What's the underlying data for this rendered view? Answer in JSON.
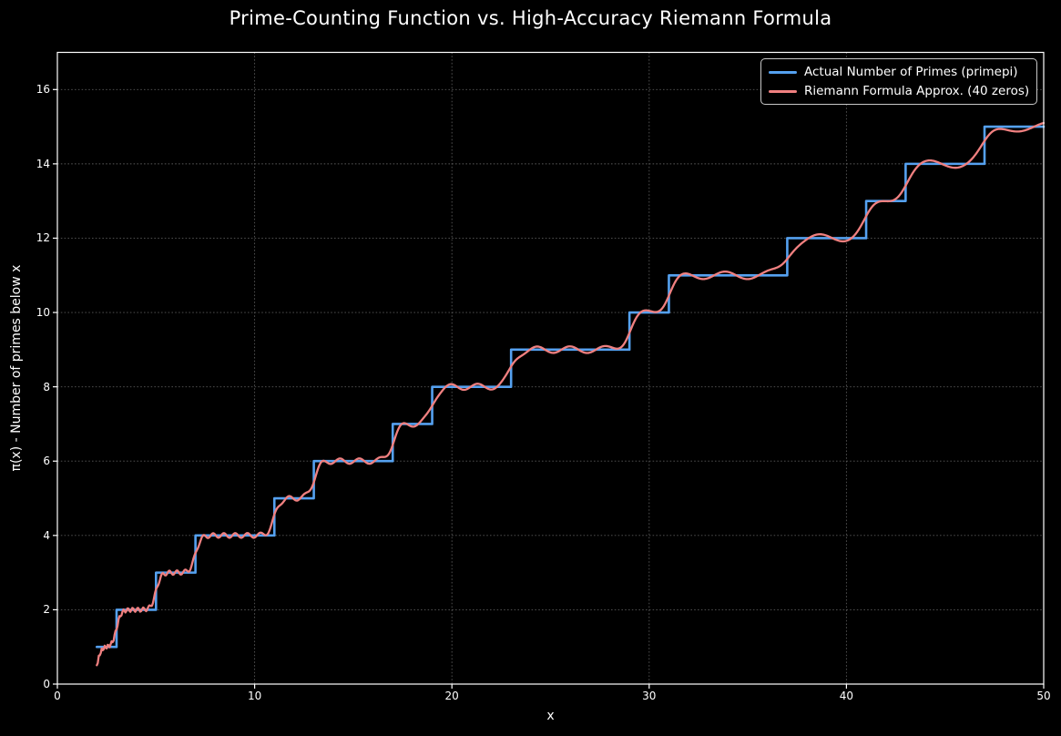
{
  "figure": {
    "background_color": "#000000",
    "text_color": "#ffffff",
    "spine_color": "#ffffff"
  },
  "chart_data": {
    "type": "line",
    "title": "Prime-Counting Function vs. High-Accuracy Riemann Formula",
    "xlabel": "x",
    "ylabel": "π(x) - Number of primes below x",
    "xlim": [
      0,
      50
    ],
    "ylim": [
      0,
      17
    ],
    "x_ticks": [
      0,
      10,
      20,
      30,
      40,
      50
    ],
    "y_ticks": [
      0,
      2,
      4,
      6,
      8,
      10,
      12,
      14,
      16
    ],
    "grid": {
      "visible": true,
      "style": "dotted",
      "color": "#585858"
    },
    "legend": {
      "position": "upper right",
      "border_color": "#c8c8c8",
      "background": "#000000"
    },
    "series": [
      {
        "name": "Actual Number of Primes (primepi)",
        "type": "step",
        "color": "#55a1f0",
        "linewidth": 2.6,
        "x_start": 2,
        "x_end": 50,
        "primes": [
          2,
          3,
          5,
          7,
          11,
          13,
          17,
          19,
          23,
          29,
          31,
          37,
          41,
          43,
          47
        ],
        "step_points": [
          [
            2,
            1
          ],
          [
            3,
            2
          ],
          [
            5,
            3
          ],
          [
            7,
            4
          ],
          [
            11,
            5
          ],
          [
            13,
            6
          ],
          [
            17,
            7
          ],
          [
            19,
            8
          ],
          [
            23,
            9
          ],
          [
            29,
            10
          ],
          [
            31,
            11
          ],
          [
            37,
            12
          ],
          [
            41,
            13
          ],
          [
            43,
            14
          ],
          [
            47,
            15
          ]
        ],
        "end_value": 15
      },
      {
        "name": "Riemann Formula Approx. (40 zeros)",
        "type": "line",
        "color": "#f08080",
        "linewidth": 2.3,
        "x_start": 2,
        "x_end": 50,
        "sample_step": 0.05,
        "anchor_points": [
          [
            2,
            0.5
          ],
          [
            2.5,
            1.0
          ],
          [
            4,
            1.97
          ],
          [
            6,
            3.0
          ],
          [
            9,
            4.0
          ],
          [
            12,
            5.0
          ],
          [
            15,
            6.0
          ],
          [
            18,
            7.0
          ],
          [
            21,
            8.0
          ],
          [
            23.6,
            9.15
          ],
          [
            26,
            9.0
          ],
          [
            30,
            10.0
          ],
          [
            31.8,
            11.15
          ],
          [
            35,
            11.0
          ],
          [
            36.5,
            10.9
          ],
          [
            38.5,
            12.0
          ],
          [
            40.3,
            11.87
          ],
          [
            42.3,
            13.0
          ],
          [
            44.3,
            14.1
          ],
          [
            45.7,
            13.9
          ],
          [
            48.5,
            15.05
          ],
          [
            50,
            15.17
          ]
        ],
        "generator": {
          "kind": "smooth-prime-steps-with-ripple",
          "transition_width_base": 0.1,
          "transition_width_slope": 0.005,
          "ripple_amplitude_base": 0.05,
          "ripple_amplitude_slope": 0.0015,
          "ripple_log_frequency": 95,
          "ripple_phase": 0
        }
      }
    ]
  }
}
